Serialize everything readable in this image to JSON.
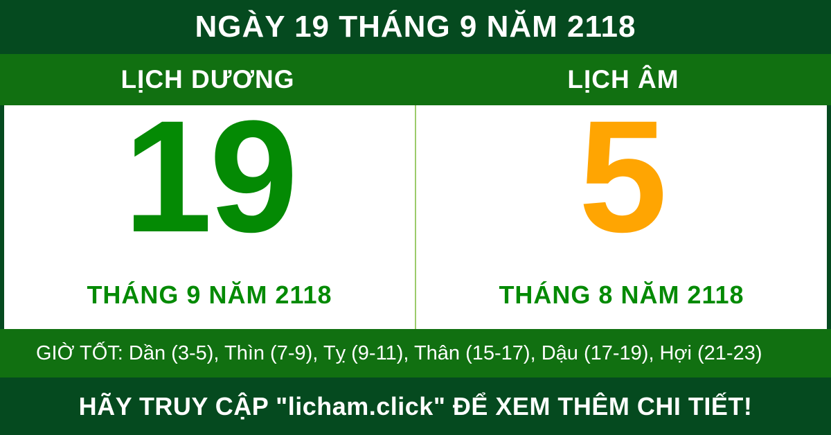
{
  "header": {
    "title": "NGÀY 19 THÁNG 9 NĂM 2118"
  },
  "calendar": {
    "solar": {
      "label": "LỊCH DƯƠNG",
      "day": "19",
      "month_year": "THÁNG 9 NĂM 2118",
      "day_color": "#048A04"
    },
    "lunar": {
      "label": "LỊCH ÂM",
      "day": "5",
      "month_year": "THÁNG 8 NĂM 2118",
      "day_color": "#FFA502"
    }
  },
  "good_hours": {
    "text": "GIỜ TỐT: Dần (3-5), Thìn (7-9), Tỵ (9-11), Thân (15-17), Dậu (17-19), Hợi (21-23)"
  },
  "footer": {
    "text": "HÃY TRUY CẬP \"licham.click\" ĐỂ XEM THÊM CHI TIẾT!"
  },
  "colors": {
    "dark_green": "#054A1F",
    "medium_green": "#117011",
    "accent_green": "#048A04",
    "accent_orange": "#FFA502",
    "divider_light_green": "#9CCB6B",
    "panel_background": "#FFFFFF",
    "text_white": "#FFFFFF"
  }
}
